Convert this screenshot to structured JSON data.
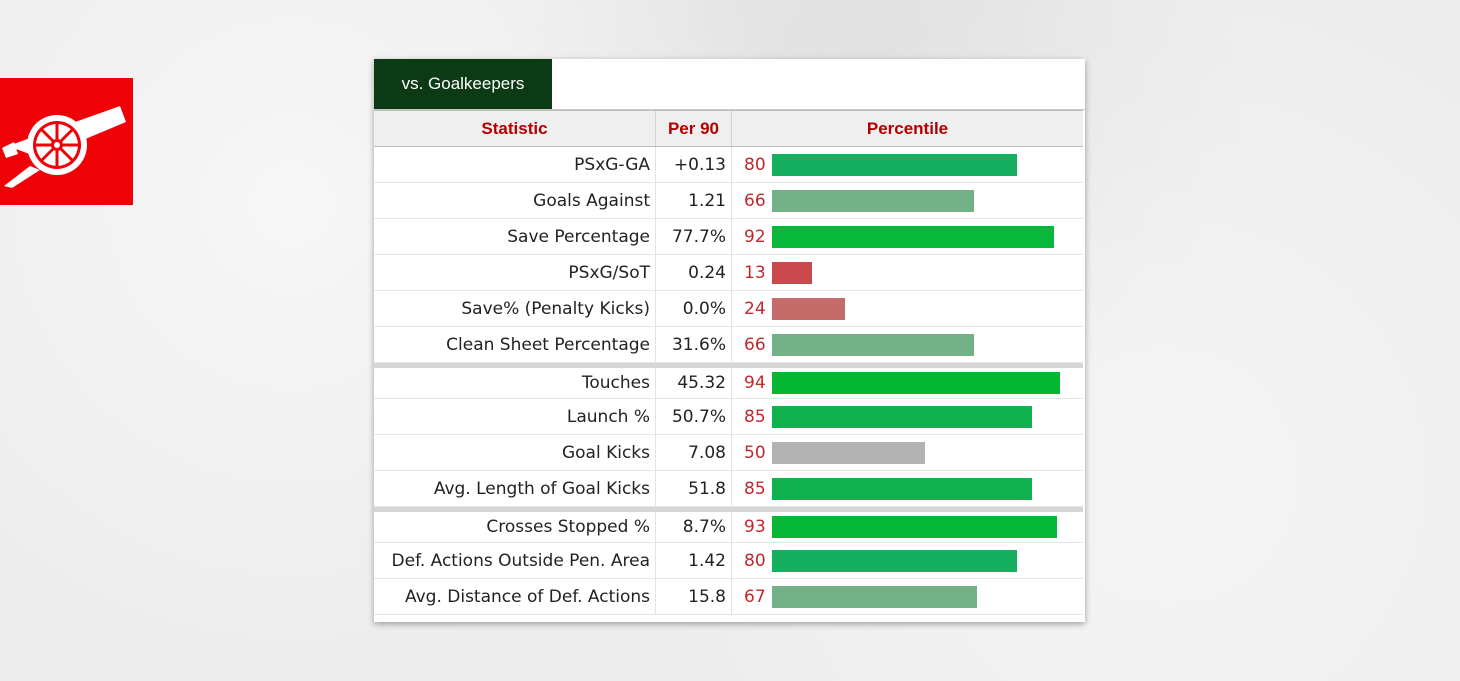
{
  "tab": {
    "label": "vs. Goalkeepers"
  },
  "headers": {
    "statistic": "Statistic",
    "per90": "Per 90",
    "percentile": "Percentile"
  },
  "groups": [
    [
      {
        "stat": "PSxG-GA",
        "per90": "+0.13",
        "percentile": 80,
        "color": "#14b05f"
      },
      {
        "stat": "Goals Against",
        "per90": "1.21",
        "percentile": 66,
        "color": "#73b187"
      },
      {
        "stat": "Save Percentage",
        "per90": "77.7%",
        "percentile": 92,
        "color": "#08b83a"
      },
      {
        "stat": "PSxG/SoT",
        "per90": "0.24",
        "percentile": 13,
        "color": "#c9494e"
      },
      {
        "stat": "Save% (Penalty Kicks)",
        "per90": "0.0%",
        "percentile": 24,
        "color": "#c56c6b"
      },
      {
        "stat": "Clean Sheet Percentage",
        "per90": "31.6%",
        "percentile": 66,
        "color": "#73b187"
      }
    ],
    [
      {
        "stat": "Touches",
        "per90": "45.32",
        "percentile": 94,
        "color": "#04b632"
      },
      {
        "stat": "Launch %",
        "per90": "50.7%",
        "percentile": 85,
        "color": "#0fb24e"
      },
      {
        "stat": "Goal Kicks",
        "per90": "7.08",
        "percentile": 50,
        "color": "#b3b3b3"
      },
      {
        "stat": "Avg. Length of Goal Kicks",
        "per90": "51.8",
        "percentile": 85,
        "color": "#0fb24e"
      }
    ],
    [
      {
        "stat": "Crosses Stopped %",
        "per90": "8.7%",
        "percentile": 93,
        "color": "#06b737"
      },
      {
        "stat": "Def. Actions Outside Pen. Area",
        "per90": "1.42",
        "percentile": 80,
        "color": "#14b05f"
      },
      {
        "stat": "Avg. Distance of Def. Actions",
        "per90": "15.8",
        "percentile": 67,
        "color": "#73b187"
      }
    ]
  ]
}
